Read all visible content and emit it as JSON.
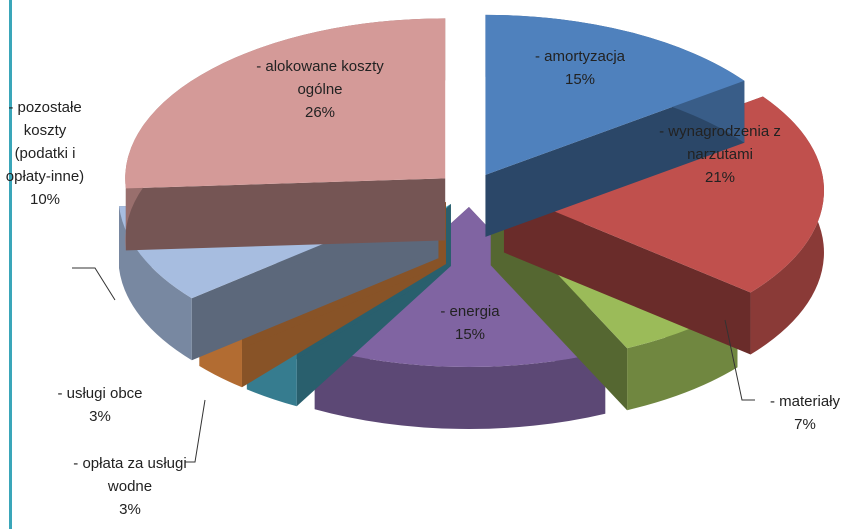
{
  "chart_data": {
    "type": "pie",
    "categories": [
      "- amortyzacja",
      "- wynagrodzenia z narzutami",
      "- materiały",
      "- energia",
      "- opłata za usługi wodne",
      "- usługi obce",
      "- pozostałe koszty (podatki i opłaty-inne)",
      "- alokowane koszty ogólne"
    ],
    "values": [
      15,
      21,
      7,
      15,
      3,
      3,
      10,
      26
    ],
    "value_labels": [
      "15%",
      "21%",
      "7%",
      "15%",
      "3%",
      "3%",
      "10%",
      "26%"
    ],
    "colors": [
      "#4f81bd",
      "#c0504d",
      "#9bbb59",
      "#8064a2",
      "#4bacc6",
      "#f79646",
      "#a7bde0",
      "#d49a98"
    ]
  }
}
